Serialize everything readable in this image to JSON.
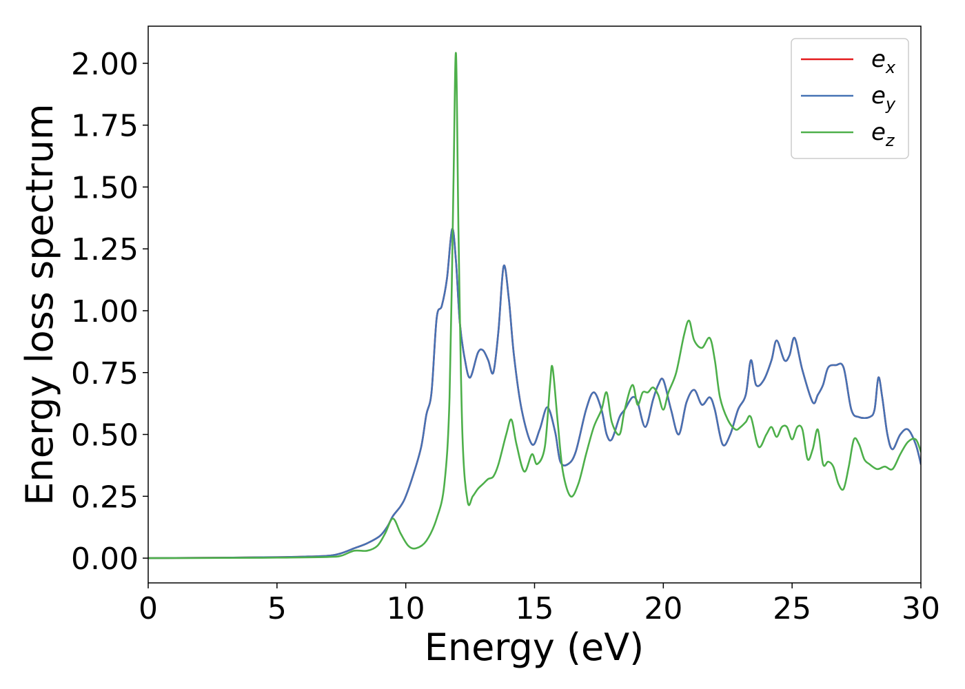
{
  "chart_data": {
    "type": "line",
    "xlabel": "Energy (eV)",
    "ylabel": "Energy loss spectrum",
    "xlim": [
      0,
      30
    ],
    "ylim": [
      -0.1,
      2.15
    ],
    "xticks": [
      0,
      5,
      10,
      15,
      20,
      25,
      30
    ],
    "xtick_labels": [
      "0",
      "5",
      "10",
      "15",
      "20",
      "25",
      "30"
    ],
    "yticks": [
      0,
      0.25,
      0.5,
      0.75,
      1.0,
      1.25,
      1.5,
      1.75,
      2.0
    ],
    "ytick_labels": [
      "0.00",
      "0.25",
      "0.50",
      "0.75",
      "1.00",
      "1.25",
      "1.50",
      "1.75",
      "2.00"
    ],
    "grid": false,
    "legend_position": "top-right",
    "series": [
      {
        "name": "e",
        "subscript": "x",
        "color": "#e41a1c",
        "x": [
          0,
          3,
          5,
          6,
          7,
          7.5,
          8,
          8.5,
          9,
          9.3,
          9.5,
          9.8,
          10,
          10.3,
          10.6,
          10.8,
          11,
          11.2,
          11.4,
          11.6,
          11.8,
          11.95,
          12.1,
          12.3,
          12.5,
          12.8,
          13,
          13.2,
          13.4,
          13.6,
          13.8,
          14,
          14.2,
          14.5,
          14.9,
          15.2,
          15.5,
          15.8,
          16,
          16.3,
          16.6,
          17,
          17.3,
          17.6,
          17.8,
          18,
          18.3,
          18.5,
          18.8,
          19,
          19.3,
          19.6,
          19.8,
          20,
          20.3,
          20.6,
          20.9,
          21.2,
          21.5,
          21.8,
          22,
          22.3,
          22.6,
          22.9,
          23.2,
          23.4,
          23.6,
          23.9,
          24.2,
          24.4,
          24.7,
          24.9,
          25.1,
          25.4,
          25.8,
          26,
          26.2,
          26.4,
          26.7,
          27,
          27.3,
          27.6,
          28,
          28.2,
          28.35,
          28.5,
          28.7,
          28.9,
          29.2,
          29.5,
          29.8,
          30
        ],
        "values": [
          0,
          0.002,
          0.004,
          0.006,
          0.01,
          0.02,
          0.04,
          0.06,
          0.09,
          0.13,
          0.17,
          0.21,
          0.25,
          0.34,
          0.45,
          0.58,
          0.67,
          0.97,
          1.02,
          1.13,
          1.33,
          1.2,
          0.95,
          0.8,
          0.73,
          0.83,
          0.84,
          0.8,
          0.75,
          0.92,
          1.18,
          1.05,
          0.82,
          0.6,
          0.46,
          0.52,
          0.61,
          0.51,
          0.39,
          0.38,
          0.43,
          0.6,
          0.67,
          0.6,
          0.5,
          0.48,
          0.57,
          0.6,
          0.65,
          0.63,
          0.53,
          0.64,
          0.7,
          0.72,
          0.6,
          0.5,
          0.63,
          0.68,
          0.62,
          0.65,
          0.6,
          0.46,
          0.5,
          0.6,
          0.66,
          0.8,
          0.7,
          0.72,
          0.8,
          0.88,
          0.8,
          0.82,
          0.89,
          0.76,
          0.63,
          0.66,
          0.7,
          0.77,
          0.78,
          0.77,
          0.6,
          0.57,
          0.57,
          0.6,
          0.73,
          0.65,
          0.5,
          0.44,
          0.5,
          0.52,
          0.46,
          0.38
        ]
      },
      {
        "name": "e",
        "subscript": "y",
        "color": "#4572b4",
        "x": [
          0,
          3,
          5,
          6,
          7,
          7.5,
          8,
          8.5,
          9,
          9.3,
          9.5,
          9.8,
          10,
          10.3,
          10.6,
          10.8,
          11,
          11.2,
          11.4,
          11.6,
          11.8,
          11.95,
          12.1,
          12.3,
          12.5,
          12.8,
          13,
          13.2,
          13.4,
          13.6,
          13.8,
          14,
          14.2,
          14.5,
          14.9,
          15.2,
          15.5,
          15.8,
          16,
          16.3,
          16.6,
          17,
          17.3,
          17.6,
          17.8,
          18,
          18.3,
          18.5,
          18.8,
          19,
          19.3,
          19.6,
          19.8,
          20,
          20.3,
          20.6,
          20.9,
          21.2,
          21.5,
          21.8,
          22,
          22.3,
          22.6,
          22.9,
          23.2,
          23.4,
          23.6,
          23.9,
          24.2,
          24.4,
          24.7,
          24.9,
          25.1,
          25.4,
          25.8,
          26,
          26.2,
          26.4,
          26.7,
          27,
          27.3,
          27.6,
          28,
          28.2,
          28.35,
          28.5,
          28.7,
          28.9,
          29.2,
          29.5,
          29.8,
          30
        ],
        "values": [
          0,
          0.002,
          0.004,
          0.006,
          0.01,
          0.02,
          0.04,
          0.06,
          0.09,
          0.13,
          0.17,
          0.21,
          0.25,
          0.34,
          0.45,
          0.58,
          0.67,
          0.97,
          1.02,
          1.13,
          1.33,
          1.2,
          0.95,
          0.8,
          0.73,
          0.83,
          0.84,
          0.8,
          0.75,
          0.92,
          1.18,
          1.05,
          0.82,
          0.6,
          0.46,
          0.52,
          0.61,
          0.51,
          0.39,
          0.38,
          0.43,
          0.6,
          0.67,
          0.6,
          0.5,
          0.48,
          0.57,
          0.6,
          0.65,
          0.63,
          0.53,
          0.64,
          0.7,
          0.72,
          0.6,
          0.5,
          0.63,
          0.68,
          0.62,
          0.65,
          0.6,
          0.46,
          0.5,
          0.6,
          0.66,
          0.8,
          0.7,
          0.72,
          0.8,
          0.88,
          0.8,
          0.82,
          0.89,
          0.76,
          0.63,
          0.66,
          0.7,
          0.77,
          0.78,
          0.77,
          0.6,
          0.57,
          0.57,
          0.6,
          0.73,
          0.65,
          0.5,
          0.44,
          0.5,
          0.52,
          0.46,
          0.38
        ]
      },
      {
        "name": "e",
        "subscript": "z",
        "color": "#4daf4a",
        "x": [
          0,
          3,
          5,
          7,
          7.5,
          8,
          8.5,
          8.9,
          9.2,
          9.5,
          9.8,
          10.1,
          10.4,
          10.8,
          11.2,
          11.5,
          11.7,
          11.85,
          11.95,
          12.05,
          12.2,
          12.4,
          12.6,
          12.8,
          13,
          13.2,
          13.4,
          13.6,
          13.9,
          14.1,
          14.3,
          14.6,
          14.9,
          15.1,
          15.4,
          15.6,
          15.7,
          15.9,
          16.1,
          16.4,
          16.7,
          17,
          17.3,
          17.6,
          17.8,
          18,
          18.3,
          18.5,
          18.8,
          19,
          19.2,
          19.4,
          19.6,
          19.8,
          20,
          20.2,
          20.5,
          20.8,
          21,
          21.2,
          21.5,
          21.8,
          22,
          22.2,
          22.5,
          22.8,
          23,
          23.2,
          23.4,
          23.7,
          24,
          24.2,
          24.4,
          24.6,
          24.8,
          25,
          25.2,
          25.4,
          25.6,
          25.8,
          26,
          26.2,
          26.4,
          26.6,
          26.8,
          27,
          27.2,
          27.4,
          27.6,
          27.8,
          28,
          28.3,
          28.6,
          28.9,
          29.2,
          29.5,
          29.8,
          30
        ],
        "values": [
          0,
          0.001,
          0.002,
          0.005,
          0.01,
          0.03,
          0.03,
          0.05,
          0.1,
          0.16,
          0.1,
          0.05,
          0.04,
          0.07,
          0.16,
          0.3,
          0.65,
          1.5,
          2.04,
          1.3,
          0.5,
          0.23,
          0.25,
          0.28,
          0.3,
          0.32,
          0.33,
          0.38,
          0.5,
          0.56,
          0.46,
          0.35,
          0.42,
          0.38,
          0.45,
          0.7,
          0.77,
          0.55,
          0.35,
          0.25,
          0.3,
          0.42,
          0.53,
          0.6,
          0.67,
          0.55,
          0.5,
          0.6,
          0.7,
          0.62,
          0.67,
          0.67,
          0.69,
          0.66,
          0.6,
          0.67,
          0.75,
          0.9,
          0.96,
          0.88,
          0.85,
          0.89,
          0.8,
          0.65,
          0.56,
          0.52,
          0.53,
          0.55,
          0.57,
          0.45,
          0.5,
          0.53,
          0.49,
          0.53,
          0.53,
          0.48,
          0.53,
          0.52,
          0.4,
          0.44,
          0.52,
          0.38,
          0.39,
          0.37,
          0.3,
          0.28,
          0.37,
          0.48,
          0.46,
          0.4,
          0.38,
          0.36,
          0.37,
          0.36,
          0.42,
          0.47,
          0.48,
          0.43
        ]
      }
    ]
  }
}
